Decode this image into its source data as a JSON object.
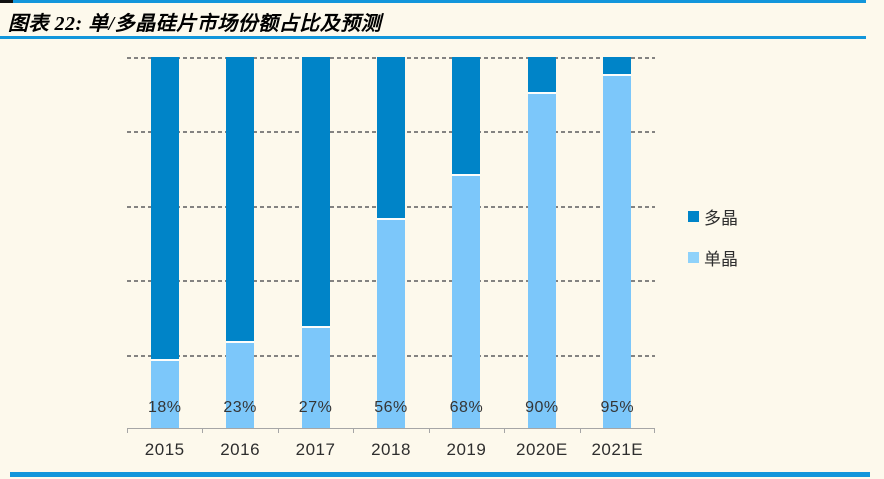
{
  "header": {
    "title": "图表 22: 单/多晶硅片市场份额占比及预测"
  },
  "chart_data": {
    "type": "bar",
    "stacked": true,
    "orientation": "vertical",
    "title": "单/多晶硅片市场份额占比及预测",
    "categories": [
      "2015",
      "2016",
      "2017",
      "2018",
      "2019",
      "2020E",
      "2021E"
    ],
    "series": [
      {
        "name": "单晶",
        "color": "#7CC7FA",
        "values": [
          18,
          23,
          27,
          56,
          68,
          90,
          95
        ]
      },
      {
        "name": "多晶",
        "color": "#0084C8",
        "values": [
          82,
          77,
          73,
          44,
          32,
          10,
          5
        ]
      }
    ],
    "data_labels": [
      "18%",
      "23%",
      "27%",
      "56%",
      "68%",
      "90%",
      "95%"
    ],
    "xlabel": "",
    "ylabel": "",
    "ylim": [
      0,
      100
    ],
    "unit": "%",
    "gridline_pcts": [
      20,
      40,
      60,
      80,
      100
    ],
    "grid": "dashed-horizontal",
    "y_axis_labels_visible": false,
    "legend_position": "right"
  },
  "legend": {
    "items": [
      {
        "label": "多晶",
        "color": "#0084C8"
      },
      {
        "label": "单晶",
        "color": "#8FD2FA"
      }
    ]
  },
  "colors": {
    "background": "#FDF9EC",
    "accent_line": "#1296DB",
    "poly_bar": "#0084C8",
    "mono_bar": "#7CC7FA",
    "axis": "#A6A6A6",
    "gridline": "#6E6E6E",
    "text": "#2E2E2E"
  }
}
